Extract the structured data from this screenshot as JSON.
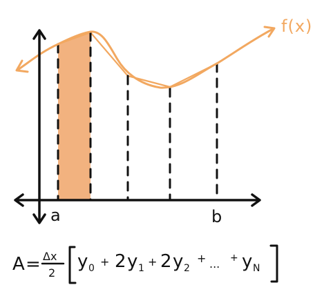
{
  "curve_label": "f(x)",
  "axis_labels": {
    "a": "a",
    "b": "b"
  },
  "formula": {
    "lhs": "A",
    "eq": "=",
    "frac_num": "Δx",
    "frac_den": "2",
    "terms": [
      {
        "coef": "",
        "var": "y",
        "sub": "0"
      },
      {
        "op": "+",
        "coef": "2",
        "var": "y",
        "sub": "1"
      },
      {
        "op": "+",
        "coef": "2",
        "var": "y",
        "sub": "2"
      },
      {
        "op": "+",
        "coef": "",
        "var": "...",
        "sub": ""
      },
      {
        "op": "+",
        "coef": "",
        "var": "y",
        "sub": "N"
      }
    ]
  },
  "colors": {
    "curve": "#f2a860",
    "shaded": "#f2b27f",
    "axes": "#111111",
    "dashes": "#111111"
  }
}
